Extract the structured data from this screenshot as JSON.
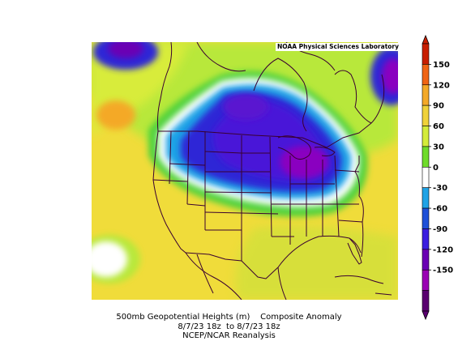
{
  "map": {
    "credit": "NOAA Physical Sciences Laboratory",
    "region": "North America",
    "field_colors": {
      "strong_negative": "#6a00a8",
      "negative": "#2f28d6",
      "weak_negative": "#1fa3e6",
      "neutral": "#ffffff",
      "weak_positive": "#6fdc2a",
      "positive": "#f0e03a",
      "strong_positive": "#f4a928"
    },
    "boundary_color": "#3a0030"
  },
  "colorbar": {
    "ticks": [
      "150",
      "120",
      "90",
      "60",
      "30",
      "0",
      "-30",
      "-60",
      "-90",
      "-120",
      "-150"
    ],
    "colors": [
      "#c81e00",
      "#f06414",
      "#f4a928",
      "#f0d23a",
      "#d4ec3a",
      "#6fdc2a",
      "#ffffff",
      "#1fa3e6",
      "#1e50d8",
      "#3a1ee0",
      "#6a00b4",
      "#9a00b4",
      "#5a0070"
    ]
  },
  "caption": {
    "line1": "500mb Geopotential Heights (m)    Composite Anomaly",
    "line2": "8/7/23 18z  to 8/7/23 18z",
    "line3": "NCEP/NCAR Reanalysis"
  }
}
